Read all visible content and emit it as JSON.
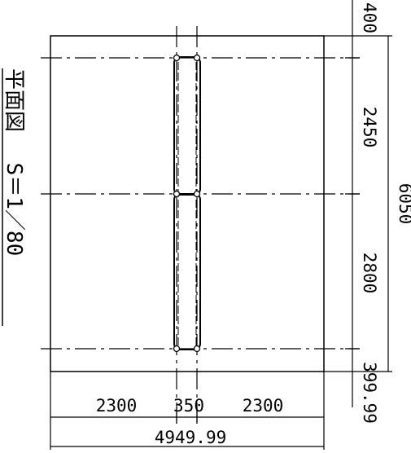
{
  "drawing": {
    "title": "平面図",
    "scale": "S＝1／80"
  },
  "dimensions": {
    "horizontal": {
      "left": "2300",
      "middle": "350",
      "right": "2300",
      "total": "4949.99"
    },
    "vertical": {
      "top": "400",
      "upper": "2450",
      "lower": "2800",
      "bottom": "399.99",
      "total": "6050"
    }
  },
  "colors": {
    "line": "#000000",
    "background": "#ffffff"
  }
}
